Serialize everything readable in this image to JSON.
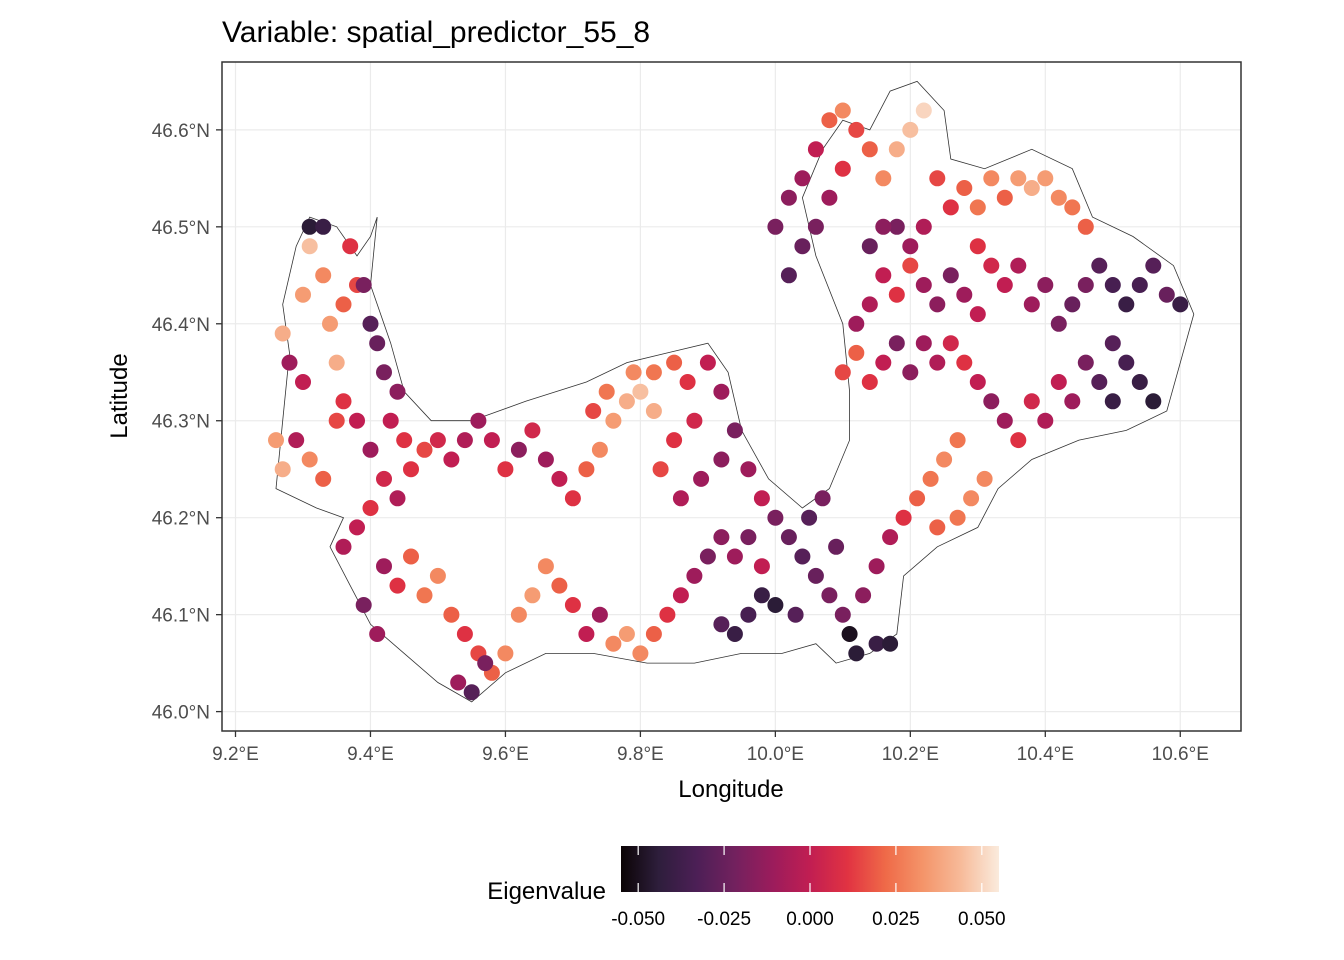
{
  "chart_data": {
    "type": "scatter",
    "title": "Variable: spatial_predictor_55_8",
    "xlabel": "Longitude",
    "ylabel": "Latitude",
    "xlim": [
      9.18,
      10.69
    ],
    "ylim": [
      45.98,
      46.67
    ],
    "x_ticks": [
      {
        "value": 9.2,
        "label": "9.2°E"
      },
      {
        "value": 9.4,
        "label": "9.4°E"
      },
      {
        "value": 9.6,
        "label": "9.6°E"
      },
      {
        "value": 9.8,
        "label": "9.8°E"
      },
      {
        "value": 10.0,
        "label": "10.0°E"
      },
      {
        "value": 10.2,
        "label": "10.2°E"
      },
      {
        "value": 10.4,
        "label": "10.4°E"
      },
      {
        "value": 10.6,
        "label": "10.6°E"
      }
    ],
    "y_ticks": [
      {
        "value": 46.0,
        "label": "46.0°N"
      },
      {
        "value": 46.1,
        "label": "46.1°N"
      },
      {
        "value": 46.2,
        "label": "46.2°N"
      },
      {
        "value": 46.3,
        "label": "46.3°N"
      },
      {
        "value": 46.4,
        "label": "46.4°N"
      },
      {
        "value": 46.5,
        "label": "46.5°N"
      },
      {
        "value": 46.6,
        "label": "46.6°N"
      }
    ],
    "grid": true,
    "legend": {
      "title": "Eigenvalue",
      "position": "bottom",
      "range": [
        -0.055,
        0.055
      ],
      "breaks": [
        {
          "value": -0.05,
          "label": "-0.050"
        },
        {
          "value": -0.025,
          "label": "-0.025"
        },
        {
          "value": 0.0,
          "label": "0.000"
        },
        {
          "value": 0.025,
          "label": "0.025"
        },
        {
          "value": 0.05,
          "label": "0.050"
        }
      ],
      "palette": [
        "#0b0405",
        "#2e1e3c",
        "#4c1f56",
        "#72215e",
        "#9b1c5c",
        "#c11e52",
        "#e13342",
        "#ef6a48",
        "#f4956a",
        "#f7bb9a",
        "#faebdd"
      ]
    },
    "points": [
      [
        9.27,
        46.39,
        0.04
      ],
      [
        9.3,
        46.43,
        0.035
      ],
      [
        9.31,
        46.48,
        0.045
      ],
      [
        9.33,
        46.45,
        0.03
      ],
      [
        9.34,
        46.4,
        0.035
      ],
      [
        9.28,
        46.36,
        -0.01
      ],
      [
        9.3,
        46.34,
        0.0
      ],
      [
        9.35,
        46.36,
        0.04
      ],
      [
        9.31,
        46.5,
        -0.045
      ],
      [
        9.33,
        46.5,
        -0.04
      ],
      [
        9.36,
        46.42,
        0.02
      ],
      [
        9.38,
        46.44,
        0.015
      ],
      [
        9.37,
        46.48,
        0.01
      ],
      [
        9.39,
        46.44,
        -0.02
      ],
      [
        9.4,
        46.4,
        -0.03
      ],
      [
        9.41,
        46.38,
        -0.025
      ],
      [
        9.42,
        46.35,
        -0.02
      ],
      [
        9.44,
        46.33,
        -0.015
      ],
      [
        9.43,
        46.3,
        0.0
      ],
      [
        9.45,
        46.28,
        0.01
      ],
      [
        9.26,
        46.28,
        0.035
      ],
      [
        9.27,
        46.25,
        0.04
      ],
      [
        9.29,
        46.28,
        -0.005
      ],
      [
        9.31,
        46.26,
        0.03
      ],
      [
        9.33,
        46.24,
        0.02
      ],
      [
        9.35,
        46.3,
        0.015
      ],
      [
        9.36,
        46.32,
        0.01
      ],
      [
        9.38,
        46.3,
        0.0
      ],
      [
        9.4,
        46.27,
        -0.01
      ],
      [
        9.42,
        46.24,
        0.005
      ],
      [
        9.44,
        46.22,
        -0.005
      ],
      [
        9.46,
        46.25,
        0.01
      ],
      [
        9.48,
        46.27,
        0.015
      ],
      [
        9.5,
        46.28,
        0.005
      ],
      [
        9.52,
        46.26,
        0.0
      ],
      [
        9.54,
        46.28,
        -0.005
      ],
      [
        9.56,
        46.3,
        -0.01
      ],
      [
        9.58,
        46.28,
        0.0
      ],
      [
        9.6,
        46.25,
        0.01
      ],
      [
        9.62,
        46.27,
        -0.015
      ],
      [
        9.64,
        46.29,
        0.005
      ],
      [
        9.66,
        46.26,
        -0.01
      ],
      [
        9.68,
        46.24,
        0.0
      ],
      [
        9.7,
        46.22,
        0.01
      ],
      [
        9.72,
        46.25,
        0.02
      ],
      [
        9.74,
        46.27,
        0.03
      ],
      [
        9.76,
        46.3,
        0.035
      ],
      [
        9.78,
        46.32,
        0.04
      ],
      [
        9.8,
        46.33,
        0.045
      ],
      [
        9.82,
        46.31,
        0.04
      ],
      [
        9.75,
        46.33,
        0.025
      ],
      [
        9.73,
        46.31,
        0.015
      ],
      [
        9.79,
        46.35,
        0.03
      ],
      [
        9.82,
        46.35,
        0.025
      ],
      [
        9.85,
        46.36,
        0.02
      ],
      [
        9.87,
        46.34,
        0.01
      ],
      [
        9.9,
        46.36,
        0.0
      ],
      [
        9.92,
        46.33,
        -0.01
      ],
      [
        9.88,
        46.3,
        0.005
      ],
      [
        9.85,
        46.28,
        0.01
      ],
      [
        9.83,
        46.25,
        0.015
      ],
      [
        9.86,
        46.22,
        -0.005
      ],
      [
        9.89,
        46.24,
        -0.01
      ],
      [
        9.92,
        46.26,
        -0.015
      ],
      [
        9.94,
        46.29,
        -0.02
      ],
      [
        9.96,
        46.25,
        -0.01
      ],
      [
        9.98,
        46.22,
        0.0
      ],
      [
        10.0,
        46.2,
        -0.02
      ],
      [
        10.02,
        46.18,
        -0.025
      ],
      [
        10.04,
        46.16,
        -0.03
      ],
      [
        10.06,
        46.14,
        -0.025
      ],
      [
        10.08,
        46.12,
        -0.02
      ],
      [
        10.03,
        46.1,
        -0.03
      ],
      [
        10.0,
        46.11,
        -0.045
      ],
      [
        9.98,
        46.12,
        -0.04
      ],
      [
        9.96,
        46.1,
        -0.035
      ],
      [
        9.94,
        46.08,
        -0.04
      ],
      [
        9.92,
        46.09,
        -0.03
      ],
      [
        10.11,
        46.08,
        -0.05
      ],
      [
        10.12,
        46.06,
        -0.045
      ],
      [
        10.15,
        46.07,
        -0.04
      ],
      [
        10.17,
        46.07,
        -0.045
      ],
      [
        10.1,
        46.1,
        -0.02
      ],
      [
        10.13,
        46.12,
        -0.015
      ],
      [
        10.15,
        46.15,
        -0.01
      ],
      [
        10.17,
        46.18,
        -0.005
      ],
      [
        10.19,
        46.2,
        0.01
      ],
      [
        10.21,
        46.22,
        0.02
      ],
      [
        10.23,
        46.24,
        0.025
      ],
      [
        10.25,
        46.26,
        0.03
      ],
      [
        10.27,
        46.28,
        0.025
      ],
      [
        10.29,
        46.22,
        0.03
      ],
      [
        10.27,
        46.2,
        0.025
      ],
      [
        10.24,
        46.19,
        0.02
      ],
      [
        10.31,
        46.24,
        0.03
      ],
      [
        9.42,
        46.15,
        -0.01
      ],
      [
        9.44,
        46.13,
        0.01
      ],
      [
        9.46,
        46.16,
        0.02
      ],
      [
        9.48,
        46.12,
        0.025
      ],
      [
        9.5,
        46.14,
        0.03
      ],
      [
        9.52,
        46.1,
        0.02
      ],
      [
        9.54,
        46.08,
        0.01
      ],
      [
        9.56,
        46.06,
        0.015
      ],
      [
        9.58,
        46.04,
        0.02
      ],
      [
        9.6,
        46.06,
        0.03
      ],
      [
        9.53,
        46.03,
        -0.01
      ],
      [
        9.55,
        46.02,
        -0.03
      ],
      [
        9.57,
        46.05,
        -0.02
      ],
      [
        9.62,
        46.1,
        0.03
      ],
      [
        9.64,
        46.12,
        0.035
      ],
      [
        9.66,
        46.15,
        0.03
      ],
      [
        9.68,
        46.13,
        0.02
      ],
      [
        9.7,
        46.11,
        0.01
      ],
      [
        9.72,
        46.08,
        0.0
      ],
      [
        9.74,
        46.1,
        -0.01
      ],
      [
        9.76,
        46.07,
        0.03
      ],
      [
        9.78,
        46.08,
        0.035
      ],
      [
        9.8,
        46.06,
        0.03
      ],
      [
        9.82,
        46.08,
        0.02
      ],
      [
        9.84,
        46.1,
        0.01
      ],
      [
        9.86,
        46.12,
        0.0
      ],
      [
        9.88,
        46.14,
        -0.01
      ],
      [
        9.9,
        46.16,
        -0.02
      ],
      [
        9.92,
        46.18,
        -0.015
      ],
      [
        9.94,
        46.16,
        -0.01
      ],
      [
        9.96,
        46.18,
        -0.02
      ],
      [
        9.98,
        46.15,
        0.0
      ],
      [
        10.05,
        46.2,
        -0.03
      ],
      [
        10.07,
        46.22,
        -0.02
      ],
      [
        10.09,
        46.17,
        -0.025
      ],
      [
        9.36,
        46.17,
        -0.005
      ],
      [
        9.38,
        46.19,
        0.0
      ],
      [
        9.4,
        46.21,
        0.01
      ],
      [
        9.39,
        46.11,
        -0.02
      ],
      [
        9.41,
        46.08,
        -0.01
      ],
      [
        10.22,
        46.62,
        0.05
      ],
      [
        10.2,
        46.6,
        0.045
      ],
      [
        10.18,
        46.58,
        0.04
      ],
      [
        10.16,
        46.55,
        0.03
      ],
      [
        10.14,
        46.58,
        0.02
      ],
      [
        10.12,
        46.6,
        0.015
      ],
      [
        10.1,
        46.56,
        0.01
      ],
      [
        10.08,
        46.53,
        -0.01
      ],
      [
        10.06,
        46.5,
        -0.02
      ],
      [
        10.04,
        46.48,
        -0.025
      ],
      [
        10.02,
        46.45,
        -0.03
      ],
      [
        10.0,
        46.5,
        -0.02
      ],
      [
        10.02,
        46.53,
        -0.015
      ],
      [
        10.04,
        46.55,
        -0.01
      ],
      [
        10.06,
        46.58,
        0.0
      ],
      [
        10.08,
        46.61,
        0.02
      ],
      [
        10.1,
        46.62,
        0.03
      ],
      [
        10.24,
        46.55,
        0.015
      ],
      [
        10.26,
        46.52,
        0.01
      ],
      [
        10.28,
        46.54,
        0.02
      ],
      [
        10.3,
        46.52,
        0.025
      ],
      [
        10.32,
        46.55,
        0.03
      ],
      [
        10.34,
        46.53,
        0.02
      ],
      [
        10.36,
        46.55,
        0.035
      ],
      [
        10.38,
        46.54,
        0.04
      ],
      [
        10.4,
        46.55,
        0.035
      ],
      [
        10.42,
        46.53,
        0.03
      ],
      [
        10.44,
        46.52,
        0.025
      ],
      [
        10.46,
        46.5,
        0.02
      ],
      [
        10.3,
        46.48,
        0.01
      ],
      [
        10.32,
        46.46,
        0.005
      ],
      [
        10.34,
        46.44,
        0.0
      ],
      [
        10.36,
        46.46,
        -0.005
      ],
      [
        10.38,
        46.42,
        -0.01
      ],
      [
        10.4,
        46.44,
        -0.015
      ],
      [
        10.42,
        46.4,
        -0.02
      ],
      [
        10.44,
        46.42,
        -0.025
      ],
      [
        10.46,
        46.44,
        -0.02
      ],
      [
        10.48,
        46.46,
        -0.03
      ],
      [
        10.5,
        46.44,
        -0.035
      ],
      [
        10.52,
        46.42,
        -0.04
      ],
      [
        10.54,
        46.44,
        -0.035
      ],
      [
        10.56,
        46.46,
        -0.03
      ],
      [
        10.58,
        46.43,
        -0.025
      ],
      [
        10.6,
        46.42,
        -0.04
      ],
      [
        10.5,
        46.38,
        -0.03
      ],
      [
        10.52,
        46.36,
        -0.035
      ],
      [
        10.54,
        46.34,
        -0.04
      ],
      [
        10.56,
        46.32,
        -0.045
      ],
      [
        10.5,
        46.32,
        -0.04
      ],
      [
        10.48,
        46.34,
        -0.03
      ],
      [
        10.46,
        46.36,
        -0.02
      ],
      [
        10.44,
        46.32,
        -0.01
      ],
      [
        10.42,
        46.34,
        0.0
      ],
      [
        10.4,
        46.3,
        -0.005
      ],
      [
        10.38,
        46.32,
        0.005
      ],
      [
        10.36,
        46.28,
        0.01
      ],
      [
        10.34,
        46.3,
        -0.01
      ],
      [
        10.32,
        46.32,
        -0.015
      ],
      [
        10.3,
        46.34,
        0.0
      ],
      [
        10.28,
        46.36,
        0.01
      ],
      [
        10.26,
        46.38,
        0.005
      ],
      [
        10.24,
        46.36,
        -0.005
      ],
      [
        10.22,
        46.38,
        -0.01
      ],
      [
        10.2,
        46.35,
        -0.015
      ],
      [
        10.18,
        46.38,
        -0.02
      ],
      [
        10.16,
        46.36,
        0.0
      ],
      [
        10.14,
        46.34,
        0.01
      ],
      [
        10.12,
        46.37,
        0.02
      ],
      [
        10.1,
        46.35,
        0.015
      ],
      [
        10.12,
        46.4,
        -0.01
      ],
      [
        10.14,
        46.42,
        -0.005
      ],
      [
        10.16,
        46.45,
        0.0
      ],
      [
        10.18,
        46.43,
        0.01
      ],
      [
        10.2,
        46.46,
        0.015
      ],
      [
        10.22,
        46.44,
        -0.01
      ],
      [
        10.24,
        46.42,
        -0.015
      ],
      [
        10.26,
        46.45,
        -0.02
      ],
      [
        10.28,
        46.43,
        -0.01
      ],
      [
        10.3,
        46.41,
        0.0
      ],
      [
        10.22,
        46.5,
        -0.005
      ],
      [
        10.2,
        46.48,
        -0.01
      ],
      [
        10.18,
        46.5,
        -0.02
      ],
      [
        10.16,
        46.5,
        -0.015
      ],
      [
        10.14,
        46.48,
        -0.025
      ]
    ]
  }
}
